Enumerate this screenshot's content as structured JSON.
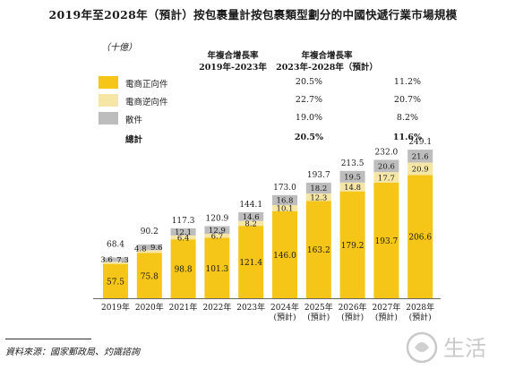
{
  "title": "2019年至2028年（預計）按包裹量計按包裹類型劃分的中國快遞行業市場規模",
  "unit": "（十億）",
  "cagr_headers": [
    "年複合增長率\n2019年-2023年",
    "年複合增長率\n2023年-2028年（預計）"
  ],
  "legend": [
    {
      "name": "電商正向件",
      "color": "#F5C518",
      "cagr_2019_2023": "20.5%",
      "cagr_2023_2028": "11.2%"
    },
    {
      "name": "電商逆向件",
      "color": "#F6E6A6",
      "cagr_2019_2023": "22.7%",
      "cagr_2023_2028": "20.7%"
    },
    {
      "name": "散件",
      "color": "#BDBDBD",
      "cagr_2019_2023": "19.0%",
      "cagr_2023_2028": "8.2%"
    },
    {
      "name": "總計",
      "color": "",
      "cagr_2019_2023": "20.5%",
      "cagr_2023_2028": "11.6%"
    }
  ],
  "chart_data": {
    "type": "bar",
    "stacked": true,
    "categories": [
      "2019年",
      "2020年",
      "2021年",
      "2022年",
      "2023年",
      "2024年\n(預計)",
      "2025年\n(預計)",
      "2026年\n(預計)",
      "2027年\n(預計)",
      "2028年\n(預計)"
    ],
    "series": [
      {
        "name": "電商正向件",
        "color": "#F5C518",
        "values": [
          57.5,
          75.8,
          98.8,
          101.3,
          121.4,
          146.0,
          163.2,
          179.2,
          193.7,
          206.6
        ]
      },
      {
        "name": "電商逆向件",
        "color": "#F6E6A6",
        "values": [
          3.6,
          4.8,
          6.4,
          6.7,
          8.2,
          10.1,
          12.3,
          14.8,
          17.7,
          20.9
        ]
      },
      {
        "name": "散件",
        "color": "#BDBDBD",
        "values": [
          7.3,
          9.6,
          12.1,
          12.9,
          14.6,
          16.8,
          18.2,
          19.5,
          20.6,
          21.6
        ]
      }
    ],
    "totals": [
      68.4,
      90.2,
      117.3,
      120.9,
      144.1,
      173.0,
      193.7,
      213.5,
      232.0,
      249.1
    ],
    "ylim": [
      0,
      260
    ]
  },
  "source": "資料來源：國家郵政局、灼識諮詢",
  "watermark": "生活"
}
